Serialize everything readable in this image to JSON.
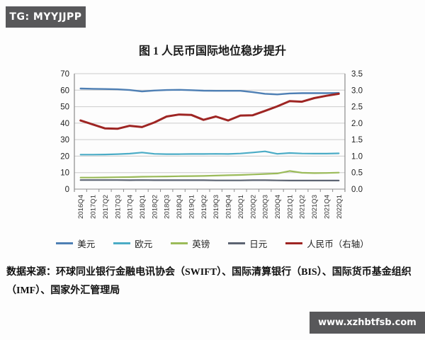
{
  "badges": {
    "top_left": "TG: MYYJJPP",
    "bottom_right": "www.xzhbtfsb.com"
  },
  "source_note": "数据来源：环球同业银行金融电讯协会（SWIFT）、国际清算银行（BIS）、国际货币基金组织（IMF）、国家外汇管理局",
  "chart_data": {
    "type": "line",
    "title": "图 1 人民币国际地位稳步提升",
    "x_labels": [
      "2016Q4",
      "2017Q1",
      "2017Q2",
      "2017Q3",
      "2017Q4",
      "2018Q1",
      "2018Q2",
      "2018Q3",
      "2018Q4",
      "2019Q1",
      "2019Q2",
      "2019Q3",
      "2019Q4",
      "2020Q1",
      "2020Q2",
      "2020Q3",
      "2020Q4",
      "2021Q1",
      "2021Q2",
      "2021Q3",
      "2021Q4",
      "2022Q1"
    ],
    "left_axis": {
      "min": 0,
      "max": 70,
      "ticks": [
        "0",
        "10",
        "20",
        "30",
        "40",
        "50",
        "60",
        "70"
      ]
    },
    "right_axis": {
      "min": 0,
      "max": 3.5,
      "ticks": [
        "0.0",
        "0.5",
        "1.0",
        "1.5",
        "2.0",
        "2.5",
        "3.0",
        "3.5"
      ]
    },
    "grid": true,
    "legend_position": "bottom",
    "series": [
      {
        "key": "usd",
        "name": "美元",
        "axis": "left",
        "color": "#4e7fb4",
        "width": 2.4,
        "values": [
          61.0,
          60.8,
          60.7,
          60.5,
          60.1,
          59.2,
          59.8,
          60.1,
          60.2,
          60.0,
          59.7,
          59.6,
          59.6,
          59.6,
          58.8,
          57.8,
          57.4,
          58.0,
          58.2,
          58.2,
          58.2,
          58.3
        ]
      },
      {
        "key": "eur",
        "name": "欧元",
        "axis": "left",
        "color": "#4bacc6",
        "width": 2.2,
        "values": [
          20.9,
          20.9,
          21.0,
          21.2,
          21.5,
          22.2,
          21.4,
          21.2,
          21.2,
          21.3,
          21.3,
          21.4,
          21.3,
          21.6,
          22.2,
          22.9,
          21.4,
          21.9,
          21.6,
          21.5,
          21.5,
          21.7
        ]
      },
      {
        "key": "gbp",
        "name": "英镑",
        "axis": "left",
        "color": "#9bbb59",
        "width": 2.2,
        "values": [
          7.0,
          7.0,
          7.1,
          7.2,
          7.3,
          7.5,
          7.6,
          7.7,
          7.8,
          7.9,
          8.0,
          8.2,
          8.4,
          8.6,
          8.9,
          9.2,
          9.5,
          11.0,
          9.9,
          9.7,
          9.8,
          10.0
        ]
      },
      {
        "key": "jpy",
        "name": "日元",
        "axis": "left",
        "color": "#5c6472",
        "width": 2.2,
        "values": [
          5.5,
          5.5,
          5.5,
          5.5,
          5.4,
          5.5,
          5.4,
          5.4,
          5.4,
          5.4,
          5.4,
          5.3,
          5.3,
          5.3,
          5.4,
          5.4,
          5.3,
          5.2,
          5.2,
          5.2,
          5.2,
          5.2
        ]
      },
      {
        "key": "rmb",
        "name": "人民币（右轴）",
        "axis": "right",
        "color": "#9e2523",
        "width": 3,
        "values": [
          2.08,
          1.96,
          1.84,
          1.83,
          1.92,
          1.88,
          2.02,
          2.2,
          2.26,
          2.25,
          2.1,
          2.2,
          2.08,
          2.23,
          2.24,
          2.37,
          2.51,
          2.67,
          2.65,
          2.76,
          2.83,
          2.89
        ]
      }
    ]
  }
}
